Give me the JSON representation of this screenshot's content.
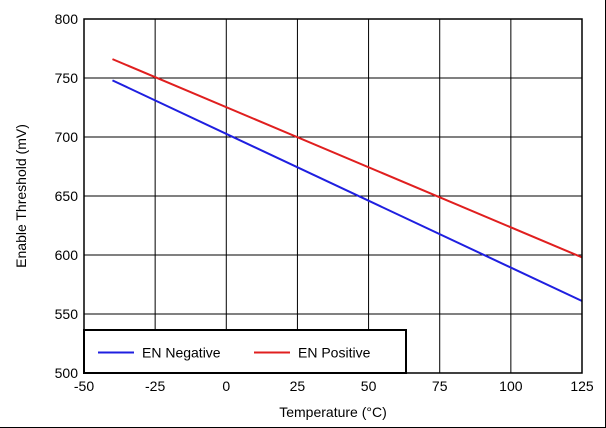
{
  "chart_data": {
    "type": "line",
    "title": "",
    "xlabel": "Temperature (°C)",
    "ylabel": "Enable Threshold (mV)",
    "xlim": [
      -50,
      125
    ],
    "ylim": [
      500,
      800
    ],
    "x_ticks": [
      -50,
      -25,
      0,
      25,
      50,
      75,
      100,
      125
    ],
    "y_ticks": [
      500,
      550,
      600,
      650,
      700,
      750,
      800
    ],
    "grid": true,
    "legend_position": "bottom-left",
    "series": [
      {
        "name": "EN Negative",
        "color": "#1f1fe0",
        "x": [
          -40,
          125
        ],
        "y": [
          748,
          561
        ]
      },
      {
        "name": "EN Positive",
        "color": "#e01f1f",
        "x": [
          -40,
          125
        ],
        "y": [
          766,
          598
        ]
      }
    ]
  }
}
